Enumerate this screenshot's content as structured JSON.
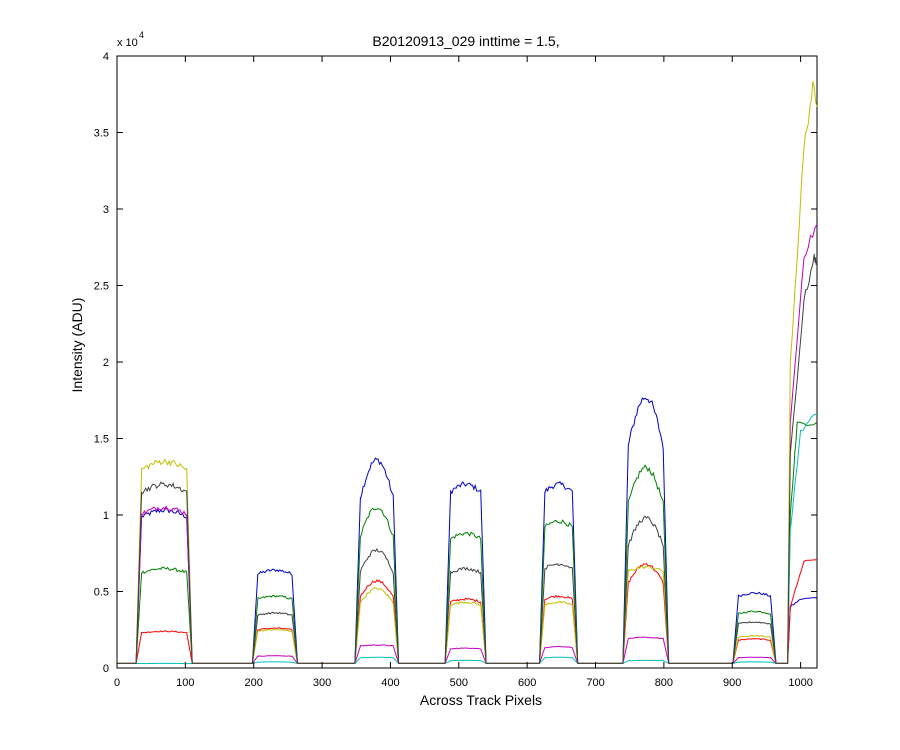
{
  "chart_data": {
    "type": "line",
    "title": "B20120913_029 inttime = 1.5,",
    "xlabel": "Across Track Pixels",
    "ylabel": "Intensity (ADU)",
    "y_exponent_label": "x 10",
    "y_exponent": "4",
    "xlim": [
      0,
      1024
    ],
    "ylim": [
      0,
      40000
    ],
    "x_ticks": [
      0,
      100,
      200,
      300,
      400,
      500,
      600,
      700,
      800,
      900,
      1000
    ],
    "y_ticks": [
      0,
      5000,
      10000,
      15000,
      20000,
      25000,
      30000,
      35000,
      40000
    ],
    "x_tick_labels": [
      "0",
      "100",
      "200",
      "300",
      "400",
      "500",
      "600",
      "700",
      "800",
      "900",
      "1000"
    ],
    "y_tick_labels": [
      "0",
      "0.5",
      "1",
      "1.5",
      "2",
      "2.5",
      "3",
      "3.5",
      "4"
    ],
    "grid": false,
    "legend": false,
    "baseline": 300,
    "series": [
      {
        "color": "#0000cc",
        "blocks": [
          {
            "start": 30,
            "end": 108,
            "level": 10300,
            "shape": "flat"
          },
          {
            "start": 200,
            "end": 262,
            "level": 6400,
            "shape": "flat"
          },
          {
            "start": 350,
            "end": 410,
            "level": 13600,
            "shape": "peak"
          },
          {
            "start": 482,
            "end": 538,
            "level": 12000,
            "shape": "flat"
          },
          {
            "start": 620,
            "end": 672,
            "level": 12000,
            "shape": "flat"
          },
          {
            "start": 742,
            "end": 805,
            "level": 17700,
            "shape": "peak"
          },
          {
            "start": 903,
            "end": 962,
            "level": 4900,
            "shape": "flat"
          }
        ],
        "edge": [
          {
            "x": 985,
            "y": 4000
          },
          {
            "x": 1000,
            "y": 4500
          },
          {
            "x": 1024,
            "y": 4600
          }
        ]
      },
      {
        "color": "#008000",
        "blocks": [
          {
            "start": 30,
            "end": 108,
            "level": 6500,
            "shape": "flat"
          },
          {
            "start": 200,
            "end": 262,
            "level": 4700,
            "shape": "flat"
          },
          {
            "start": 350,
            "end": 410,
            "level": 10500,
            "shape": "peak"
          },
          {
            "start": 482,
            "end": 538,
            "level": 8800,
            "shape": "flat"
          },
          {
            "start": 620,
            "end": 672,
            "level": 9600,
            "shape": "flat"
          },
          {
            "start": 742,
            "end": 805,
            "level": 13100,
            "shape": "peak"
          },
          {
            "start": 903,
            "end": 962,
            "level": 3700,
            "shape": "flat"
          }
        ],
        "edge": [
          {
            "x": 985,
            "y": 10000
          },
          {
            "x": 995,
            "y": 16000
          },
          {
            "x": 1024,
            "y": 16000
          }
        ]
      },
      {
        "color": "#ff0000",
        "blocks": [
          {
            "start": 30,
            "end": 108,
            "level": 2400,
            "shape": "flat"
          },
          {
            "start": 200,
            "end": 262,
            "level": 2600,
            "shape": "flat"
          },
          {
            "start": 350,
            "end": 410,
            "level": 5700,
            "shape": "peak"
          },
          {
            "start": 482,
            "end": 538,
            "level": 4500,
            "shape": "flat"
          },
          {
            "start": 620,
            "end": 672,
            "level": 4700,
            "shape": "flat"
          },
          {
            "start": 742,
            "end": 805,
            "level": 6800,
            "shape": "peak"
          },
          {
            "start": 903,
            "end": 962,
            "level": 1900,
            "shape": "flat"
          }
        ],
        "edge": [
          {
            "x": 985,
            "y": 4000
          },
          {
            "x": 1005,
            "y": 7000
          },
          {
            "x": 1024,
            "y": 7100
          }
        ]
      },
      {
        "color": "#00bfbf",
        "blocks": [
          {
            "start": 30,
            "end": 108,
            "level": 300,
            "shape": "flat"
          },
          {
            "start": 200,
            "end": 262,
            "level": 400,
            "shape": "flat"
          },
          {
            "start": 350,
            "end": 410,
            "level": 700,
            "shape": "flat"
          },
          {
            "start": 482,
            "end": 538,
            "level": 500,
            "shape": "flat"
          },
          {
            "start": 620,
            "end": 672,
            "level": 700,
            "shape": "flat"
          },
          {
            "start": 742,
            "end": 805,
            "level": 500,
            "shape": "flat"
          },
          {
            "start": 903,
            "end": 962,
            "level": 400,
            "shape": "flat"
          }
        ],
        "edge": [
          {
            "x": 985,
            "y": 9000
          },
          {
            "x": 1000,
            "y": 15500
          },
          {
            "x": 1024,
            "y": 16700
          }
        ]
      },
      {
        "color": "#bf00bf",
        "blocks": [
          {
            "start": 30,
            "end": 108,
            "level": 10500,
            "shape": "flat"
          },
          {
            "start": 200,
            "end": 262,
            "level": 800,
            "shape": "flat"
          },
          {
            "start": 350,
            "end": 410,
            "level": 1500,
            "shape": "flat"
          },
          {
            "start": 482,
            "end": 538,
            "level": 1300,
            "shape": "flat"
          },
          {
            "start": 620,
            "end": 672,
            "level": 1400,
            "shape": "flat"
          },
          {
            "start": 742,
            "end": 805,
            "level": 2000,
            "shape": "flat"
          },
          {
            "start": 903,
            "end": 962,
            "level": 700,
            "shape": "flat"
          }
        ],
        "edge": [
          {
            "x": 985,
            "y": 16000
          },
          {
            "x": 1005,
            "y": 27000
          },
          {
            "x": 1024,
            "y": 29000
          }
        ]
      },
      {
        "color": "#bfbf00",
        "blocks": [
          {
            "start": 30,
            "end": 108,
            "level": 13500,
            "shape": "flat"
          },
          {
            "start": 200,
            "end": 262,
            "level": 2500,
            "shape": "flat"
          },
          {
            "start": 350,
            "end": 410,
            "level": 5200,
            "shape": "peak"
          },
          {
            "start": 482,
            "end": 538,
            "level": 4300,
            "shape": "flat"
          },
          {
            "start": 620,
            "end": 672,
            "level": 4300,
            "shape": "flat"
          },
          {
            "start": 742,
            "end": 805,
            "level": 6600,
            "shape": "flat"
          },
          {
            "start": 903,
            "end": 962,
            "level": 2100,
            "shape": "flat"
          }
        ],
        "edge": [
          {
            "x": 985,
            "y": 20000
          },
          {
            "x": 1005,
            "y": 34000
          },
          {
            "x": 1018,
            "y": 38000
          },
          {
            "x": 1024,
            "y": 37000
          }
        ]
      },
      {
        "color": "#404040",
        "blocks": [
          {
            "start": 30,
            "end": 108,
            "level": 12000,
            "shape": "flat"
          },
          {
            "start": 200,
            "end": 262,
            "level": 3600,
            "shape": "flat"
          },
          {
            "start": 350,
            "end": 410,
            "level": 7700,
            "shape": "peak"
          },
          {
            "start": 482,
            "end": 538,
            "level": 6500,
            "shape": "flat"
          },
          {
            "start": 620,
            "end": 672,
            "level": 6800,
            "shape": "flat"
          },
          {
            "start": 742,
            "end": 805,
            "level": 9800,
            "shape": "peak"
          },
          {
            "start": 903,
            "end": 962,
            "level": 3000,
            "shape": "flat"
          }
        ],
        "edge": [
          {
            "x": 985,
            "y": 14000
          },
          {
            "x": 1005,
            "y": 24000
          },
          {
            "x": 1020,
            "y": 26800
          },
          {
            "x": 1024,
            "y": 26500
          }
        ]
      }
    ]
  }
}
